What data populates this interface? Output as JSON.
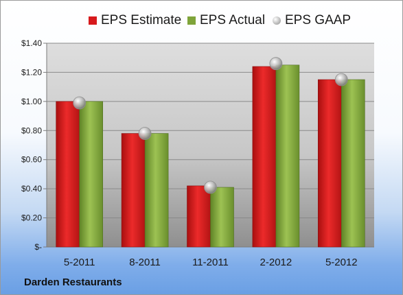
{
  "company": "Darden Restaurants",
  "legend": [
    {
      "label": "EPS Estimate",
      "color": "#d7191c",
      "marker": "square"
    },
    {
      "label": "EPS Actual",
      "color": "#7fa43a",
      "marker": "square"
    },
    {
      "label": "EPS GAAP",
      "color": "#b9b9b9",
      "marker": "circle"
    }
  ],
  "chart_data": {
    "type": "bar",
    "categories": [
      "5-2011",
      "8-2011",
      "11-2011",
      "2-2012",
      "5-2012"
    ],
    "series": [
      {
        "name": "EPS Estimate",
        "type": "bar",
        "color": "#d7191c",
        "values": [
          1.0,
          0.78,
          0.42,
          1.24,
          1.15
        ]
      },
      {
        "name": "EPS Actual",
        "type": "bar",
        "color": "#7fa43a",
        "values": [
          1.0,
          0.78,
          0.41,
          1.25,
          1.15
        ]
      },
      {
        "name": "EPS GAAP",
        "type": "scatter",
        "color": "#b9b9b9",
        "values": [
          0.99,
          0.78,
          0.41,
          1.26,
          1.15
        ]
      }
    ],
    "y_ticks": [
      0,
      0.2,
      0.4,
      0.6,
      0.8,
      1.0,
      1.2,
      1.4
    ],
    "y_tick_labels": [
      "$-",
      "$0.20",
      "$0.40",
      "$0.60",
      "$0.80",
      "$1.00",
      "$1.20",
      "$1.40"
    ],
    "ylim": [
      0,
      1.4
    ],
    "grid": true,
    "legend_position": "top",
    "xlabel": "",
    "ylabel": ""
  }
}
